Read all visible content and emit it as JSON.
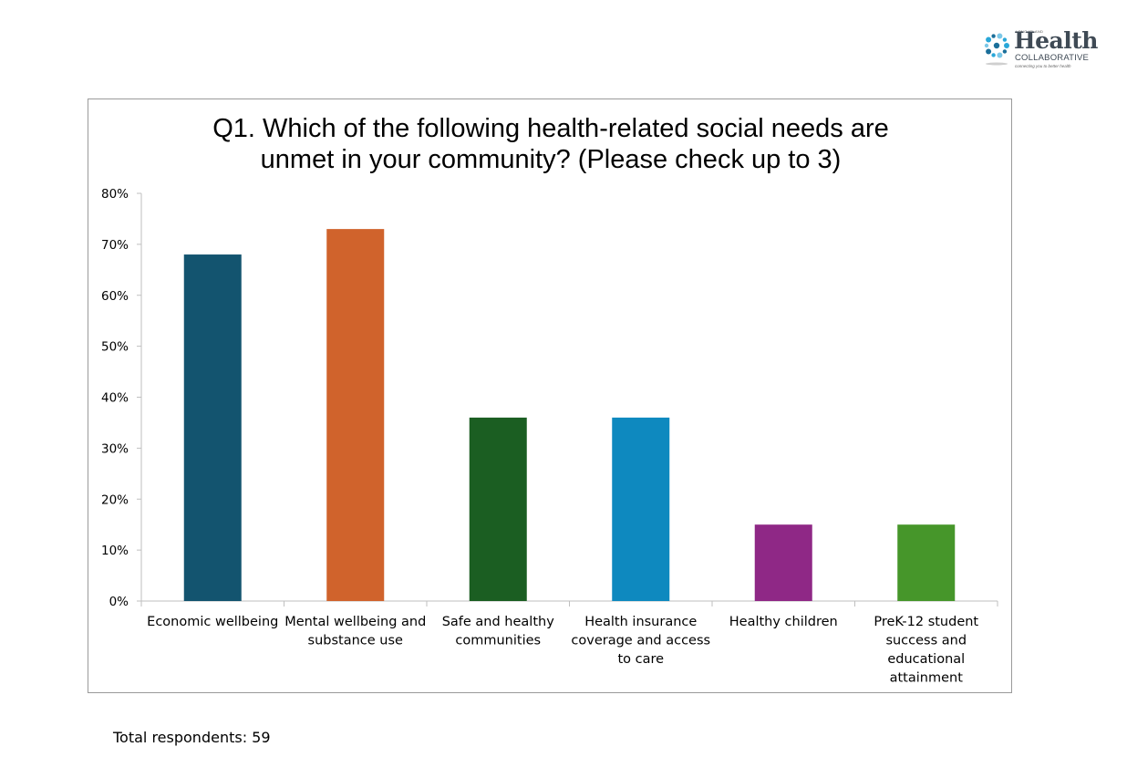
{
  "logo": {
    "top_text": "LONG ISLAND",
    "word": "Health",
    "sub": "COLLABORATIVE",
    "tagline": "connecting you to better health",
    "colors": [
      "#2aa7d8",
      "#1b6f9a",
      "#7cc8e8"
    ]
  },
  "chart_data": {
    "type": "bar",
    "title_lines": [
      "Q1. Which of the following health-related social needs are",
      "unmet in your community? (Please check up to 3)"
    ],
    "categories": [
      "Economic wellbeing",
      "Mental wellbeing and substance use",
      "Safe and healthy communities",
      "Health insurance coverage and access to care",
      "Healthy children",
      "PreK-12 student success and educational attainment"
    ],
    "category_label_lines": [
      [
        "Economic wellbeing"
      ],
      [
        "Mental wellbeing and",
        "substance use"
      ],
      [
        "Safe and healthy",
        "communities"
      ],
      [
        "Health insurance",
        "coverage and access",
        "to care"
      ],
      [
        "Healthy children"
      ],
      [
        "PreK-12 student",
        "success and",
        "educational",
        "attainment"
      ]
    ],
    "values": [
      0.68,
      0.73,
      0.36,
      0.36,
      0.15,
      0.15
    ],
    "colors": [
      "#13546f",
      "#d0632c",
      "#1b5e22",
      "#0e89bf",
      "#8f2886",
      "#46962a"
    ],
    "ylim": [
      0,
      0.8
    ],
    "yticks": [
      0,
      0.1,
      0.2,
      0.3,
      0.4,
      0.5,
      0.6,
      0.7,
      0.8
    ],
    "ytick_labels": [
      "0%",
      "10%",
      "20%",
      "30%",
      "40%",
      "50%",
      "60%",
      "70%",
      "80%"
    ],
    "xlabel": "",
    "ylabel": "",
    "grid": false
  },
  "footer": {
    "respondents": "Total respondents: 59"
  }
}
